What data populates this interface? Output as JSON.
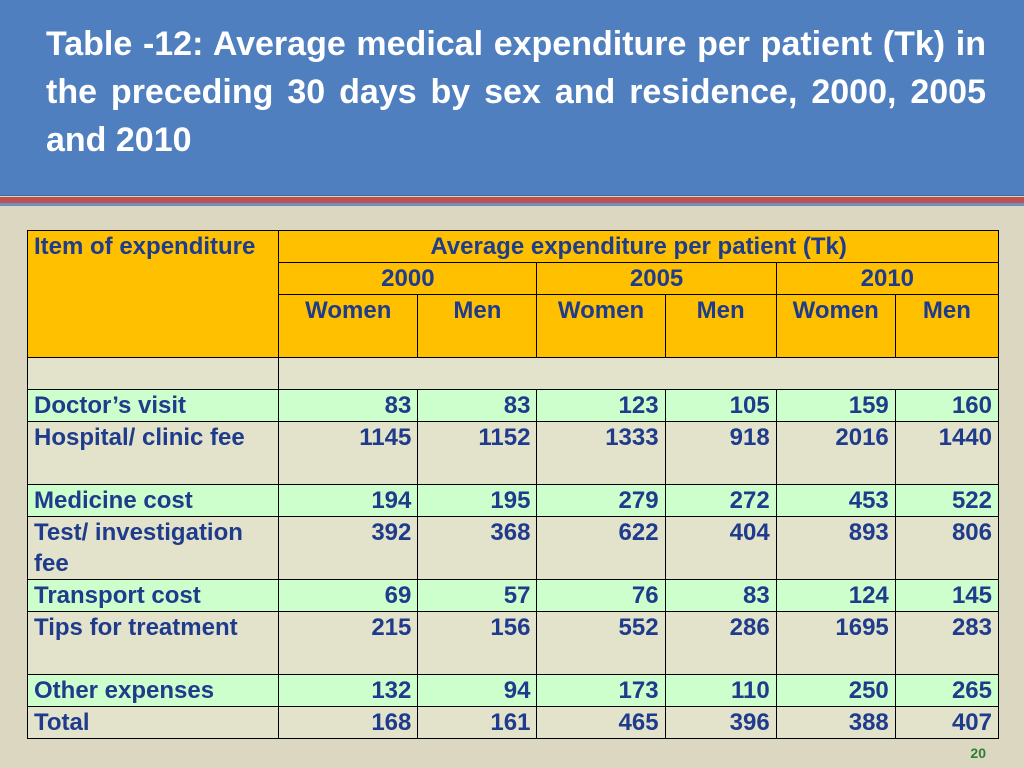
{
  "title": "Table -12: Average medical expenditure per patient (Tk) in the preceding 30 days by sex and residence, 2000, 2005 and 2010",
  "table": {
    "item_header": "Item of expenditure",
    "group_header": "Average expenditure per patient (Tk)",
    "years": [
      "2000",
      "2005",
      "2010"
    ],
    "sexes": [
      "Women",
      "Men",
      "Women",
      "Men",
      "Women",
      "Men"
    ],
    "rows": [
      {
        "label": "Doctor’s visit",
        "values": [
          "83",
          "83",
          "123",
          "105",
          "159",
          "160"
        ]
      },
      {
        "label": "Hospital/ clinic fee",
        "values": [
          "1145",
          "1152",
          "1333",
          "918",
          "2016",
          "1440"
        ]
      },
      {
        "label": "Medicine cost",
        "values": [
          "194",
          "195",
          "279",
          "272",
          "453",
          "522"
        ]
      },
      {
        "label": "Test/ investigation fee",
        "values": [
          "392",
          "368",
          "622",
          "404",
          "893",
          "806"
        ]
      },
      {
        "label": "Transport cost",
        "values": [
          "69",
          "57",
          "76",
          "83",
          "124",
          "145"
        ]
      },
      {
        "label": "Tips for treatment",
        "values": [
          "215",
          "156",
          "552",
          "286",
          "1695",
          "283"
        ]
      },
      {
        "label": "Other expenses",
        "values": [
          "132",
          "94",
          "173",
          "110",
          "250",
          "265"
        ]
      },
      {
        "label": "Total",
        "values": [
          "168",
          "161",
          "465",
          "396",
          "388",
          "407"
        ]
      }
    ]
  },
  "page_number": "20",
  "colors": {
    "header_bg": "#4f7fbf",
    "table_header_bg": "#ffc000",
    "row_light": "#ccffcc",
    "row_tan": "#e3e3cc",
    "text_blue": "#1f3b8c",
    "accent_red": "#c0504d"
  }
}
